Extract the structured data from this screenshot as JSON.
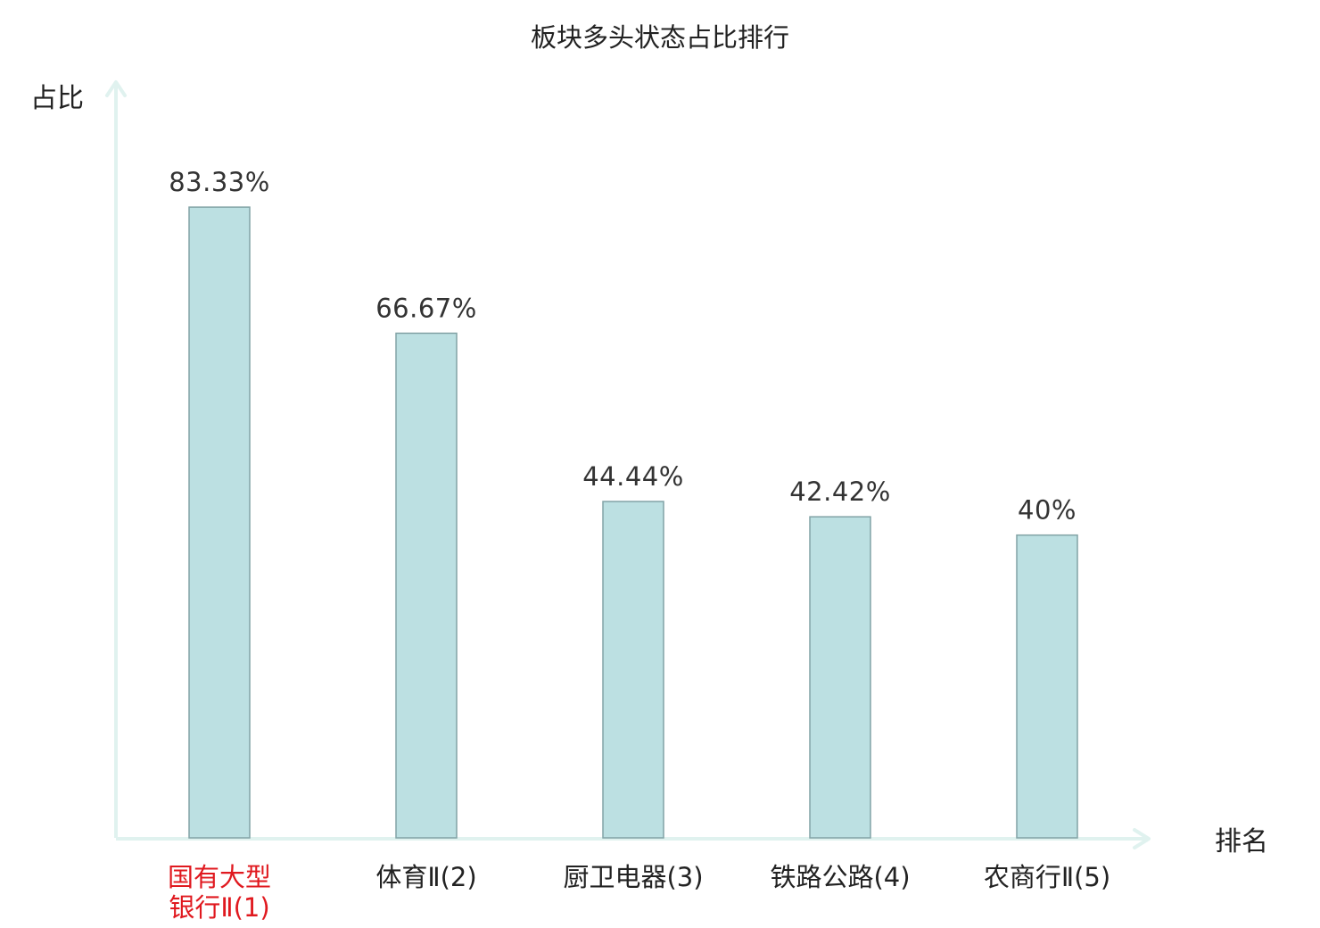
{
  "chart_data": {
    "type": "bar",
    "title": "板块多头状态占比排行",
    "ylabel": "占比",
    "xlabel": "排名",
    "ylim": [
      0,
      100
    ],
    "grid": false,
    "categories": [
      {
        "name": "国有大型银行Ⅱ",
        "rank": "(1)",
        "lines": [
          "国有大型",
          "银行Ⅱ(1)"
        ],
        "highlight": true
      },
      {
        "name": "体育Ⅱ",
        "rank": "(2)",
        "lines": [
          "体育Ⅱ(2)"
        ],
        "highlight": false
      },
      {
        "name": "厨卫电器",
        "rank": "(3)",
        "lines": [
          "厨卫电器(3)"
        ],
        "highlight": false
      },
      {
        "name": "铁路公路",
        "rank": "(4)",
        "lines": [
          "铁路公路(4)"
        ],
        "highlight": false
      },
      {
        "name": "农商行Ⅱ",
        "rank": "(5)",
        "lines": [
          "农商行Ⅱ(5)"
        ],
        "highlight": false
      }
    ],
    "values": [
      83.33,
      66.67,
      44.44,
      42.42,
      40
    ],
    "value_labels": [
      "83.33%",
      "66.67%",
      "44.44%",
      "42.42%",
      "40%"
    ]
  },
  "colors": {
    "bar_fill": "#bce0e2",
    "bar_stroke": "#82a3a6",
    "axis": "#e0f2ef",
    "highlight_text": "#e0191f",
    "normal_text": "#222222",
    "value_text": "#333333"
  }
}
